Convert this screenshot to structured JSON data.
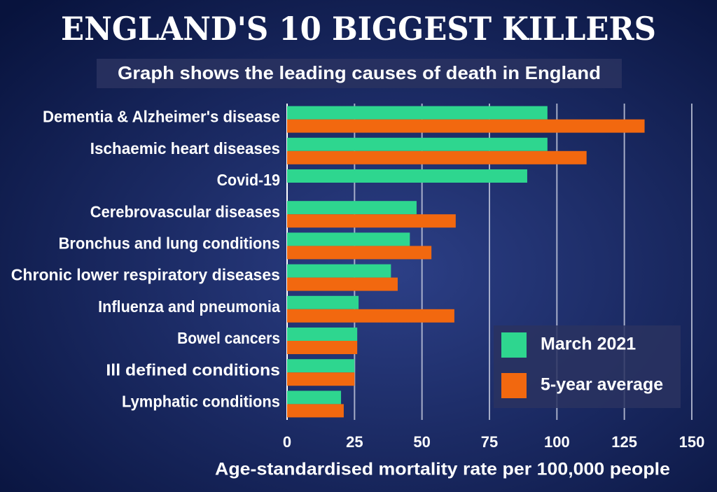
{
  "chart_data": {
    "type": "bar",
    "orientation": "horizontal",
    "title": "ENGLAND'S 10 BIGGEST KILLERS",
    "subtitle": "Graph shows the leading causes of death in England",
    "x_label": "Age-standardised mortality rate per 100,000 people",
    "categories": [
      "Dementia & Alzheimer's disease",
      "Ischaemic heart diseases",
      "Covid-19",
      "Cerebrovascular diseases",
      "Bronchus and lung conditions",
      "Chronic lower respiratory diseases",
      "Influenza and pneumonia",
      "Bowel cancers",
      "Ill defined conditions",
      "Lymphatic conditions"
    ],
    "series": [
      {
        "name": "March 2021",
        "color": "#2ed68f",
        "values": [
          96.5,
          96.5,
          89,
          48,
          45.5,
          38.5,
          26.5,
          26,
          25,
          20
        ]
      },
      {
        "name": "5-year average",
        "color": "#f2680f",
        "values": [
          132.5,
          111,
          null,
          62.5,
          53.5,
          41,
          62,
          26,
          25,
          21
        ]
      }
    ],
    "xlim": [
      0,
      150
    ],
    "xticks": [
      0,
      25,
      50,
      75,
      100,
      125,
      150
    ],
    "grid": true,
    "legend": "lower right"
  }
}
